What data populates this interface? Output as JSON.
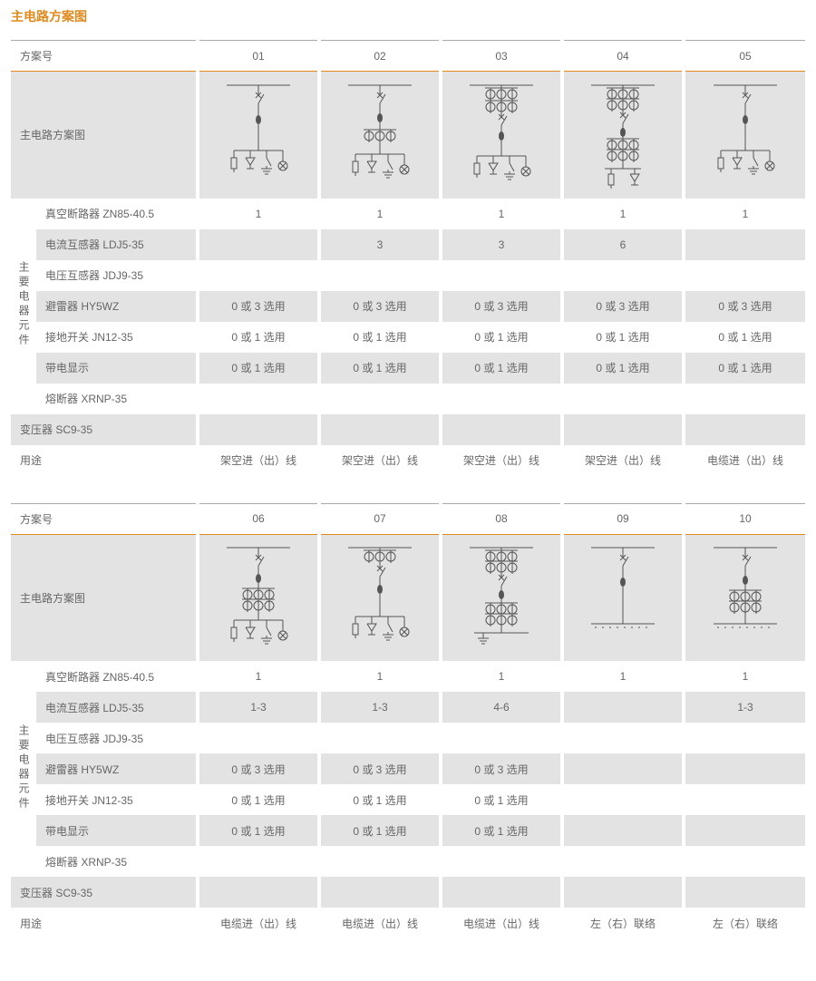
{
  "page_title": "主电路方案图",
  "colors": {
    "accent": "#e08a1e",
    "grey_bg": "#e3e3e3",
    "text": "#666666",
    "stroke": "#555555"
  },
  "row_header_scheme": "方案号",
  "row_diagram": "主电路方案图",
  "components_group_label": "主要电器元件",
  "components": [
    "真空断路器 ZN85-40.5",
    "电流互感器 LDJ5-35",
    "电压互感器 JDJ9-35",
    "避雷器 HY5WZ",
    "接地开关 JN12-35",
    "带电显示",
    "熔断器 XRNP-35"
  ],
  "row_transformer": "变压器 SC9-35",
  "row_usage": "用途",
  "tables": [
    {
      "schemes": [
        "01",
        "02",
        "03",
        "04",
        "05"
      ],
      "rows": {
        "breaker": [
          "1",
          "1",
          "1",
          "1",
          "1"
        ],
        "ct": [
          "",
          "3",
          "3",
          "6",
          ""
        ],
        "pt": [
          "",
          "",
          "",
          "",
          ""
        ],
        "arrester": [
          "0 或 3 选用",
          "0 或 3 选用",
          "0 或 3 选用",
          "0 或 3 选用",
          "0 或 3 选用"
        ],
        "ground": [
          "0 或 1 选用",
          "0 或 1 选用",
          "0 或 1 选用",
          "0 或 1 选用",
          "0 或 1 选用"
        ],
        "live": [
          "0 或 1 选用",
          "0 或 1 选用",
          "0 或 1 选用",
          "0 或 1 选用",
          "0 或 1 选用"
        ],
        "fuse": [
          "",
          "",
          "",
          "",
          ""
        ],
        "transformer": [
          "",
          "",
          "",
          "",
          ""
        ],
        "usage": [
          "架空进（出）线",
          "架空进（出）线",
          "架空进（出）线",
          "架空进（出）线",
          "电缆进（出）线"
        ]
      }
    },
    {
      "schemes": [
        "06",
        "07",
        "08",
        "09",
        "10"
      ],
      "rows": {
        "breaker": [
          "1",
          "1",
          "1",
          "1",
          "1"
        ],
        "ct": [
          "1-3",
          "1-3",
          "4-6",
          "",
          "1-3"
        ],
        "pt": [
          "",
          "",
          "",
          "",
          ""
        ],
        "arrester": [
          "0 或 3 选用",
          "0 或 3 选用",
          "0 或 3 选用",
          "",
          ""
        ],
        "ground": [
          "0 或 1 选用",
          "0 或 1 选用",
          "0 或 1 选用",
          "",
          ""
        ],
        "live": [
          "0 或 1 选用",
          "0 或 1 选用",
          "0 或 1 选用",
          "",
          ""
        ],
        "fuse": [
          "",
          "",
          "",
          "",
          ""
        ],
        "transformer": [
          "",
          "",
          "",
          "",
          ""
        ],
        "usage": [
          "电缆进（出）线",
          "电缆进（出）线",
          "电缆进（出）线",
          "左（右）联络",
          "左（右）联络"
        ]
      }
    }
  ],
  "diagrams": {
    "desc": "Simplified single-line circuit schematics; variants differ by presence/position of CT groups (2x3 circles with tick), switch, breaker (filled ellipse), bottom branch symbols (ground, arrester, lamp).",
    "stroke_color": "#555555",
    "symbols": {
      "switch": "short diagonal line with x",
      "breaker": "small filled ellipse on vertical line",
      "ct_row": "three circles with short vertical tick through center, horizontal bar above",
      "ground": "three decreasing horizontal bars",
      "arrester": "open triangle pointing down",
      "lamp": "circle with X inside",
      "fuse": "rectangle on vertical line"
    }
  }
}
